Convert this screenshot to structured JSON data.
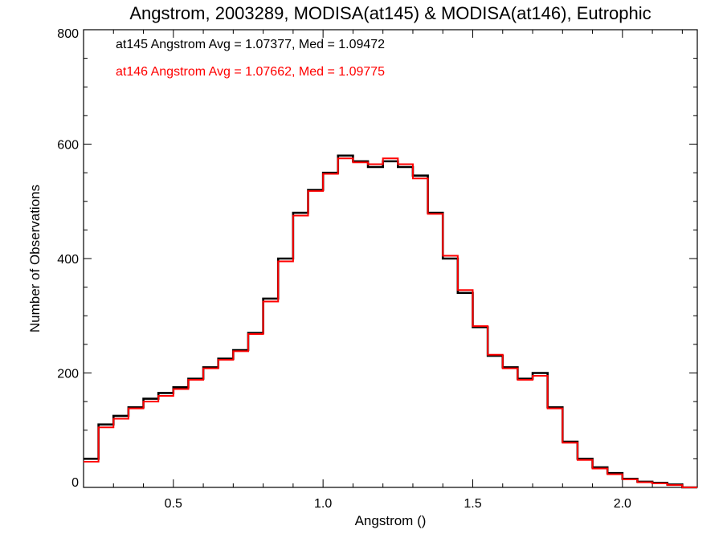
{
  "chart_data": {
    "type": "line",
    "title": "Angstrom, 2003289, MODISA(at145) & MODISA(at146), Eutrophic",
    "xlabel": "Angstrom ()",
    "ylabel": "Number of Observations",
    "xlim": [
      0.2,
      2.25
    ],
    "ylim": [
      0,
      800
    ],
    "xticks": [
      0.5,
      1.0,
      1.5,
      2.0
    ],
    "xtick_labels": [
      "0.5",
      "1.0",
      "1.5",
      "2.0"
    ],
    "yticks": [
      0,
      200,
      400,
      600,
      800
    ],
    "ytick_labels": [
      "0",
      "200",
      "400",
      "600",
      "800"
    ],
    "step": "histogram",
    "legend_placement": "top-left",
    "annotations": [
      {
        "text": "at145 Angstrom Avg = 1.07377, Med = 1.09472",
        "color": "#000000"
      },
      {
        "text": "at146 Angstrom Avg = 1.07662, Med = 1.09775",
        "color": "#ff0000"
      }
    ],
    "x": [
      0.2,
      0.25,
      0.3,
      0.35,
      0.4,
      0.45,
      0.5,
      0.55,
      0.6,
      0.65,
      0.7,
      0.75,
      0.8,
      0.85,
      0.9,
      0.95,
      1.0,
      1.05,
      1.1,
      1.15,
      1.2,
      1.25,
      1.3,
      1.35,
      1.4,
      1.45,
      1.5,
      1.55,
      1.6,
      1.65,
      1.7,
      1.75,
      1.8,
      1.85,
      1.9,
      1.95,
      2.0,
      2.05,
      2.1,
      2.15,
      2.2,
      2.25
    ],
    "series": [
      {
        "name": "at145",
        "color": "#000000",
        "values": [
          50,
          110,
          125,
          140,
          155,
          165,
          175,
          190,
          210,
          225,
          240,
          270,
          330,
          400,
          480,
          520,
          550,
          580,
          570,
          560,
          570,
          560,
          545,
          480,
          400,
          340,
          280,
          230,
          210,
          190,
          200,
          140,
          80,
          50,
          35,
          25,
          15,
          10,
          8,
          5,
          0,
          0
        ]
      },
      {
        "name": "at146",
        "color": "#ff0000",
        "values": [
          45,
          105,
          120,
          138,
          150,
          160,
          172,
          188,
          208,
          223,
          238,
          268,
          325,
          395,
          475,
          518,
          548,
          575,
          568,
          565,
          575,
          565,
          540,
          478,
          405,
          345,
          282,
          232,
          208,
          188,
          195,
          138,
          78,
          48,
          33,
          23,
          14,
          9,
          7,
          4,
          0,
          0
        ]
      }
    ]
  }
}
